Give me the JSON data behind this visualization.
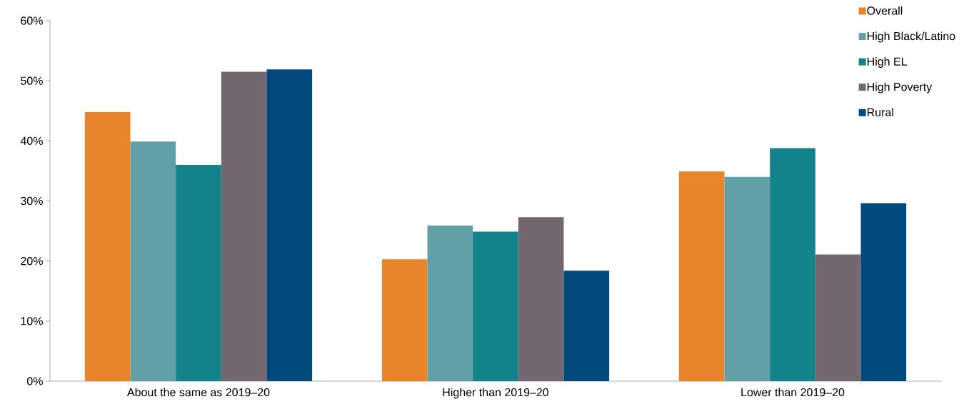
{
  "chart_data": {
    "type": "bar",
    "categories": [
      "About the same as 2019–20",
      "Higher than 2019–20",
      "Lower than 2019–20"
    ],
    "series": [
      {
        "name": "Overall",
        "color": "#e8852a",
        "values": [
          44.8,
          20.3,
          34.9
        ]
      },
      {
        "name": "High Black/Latino",
        "color": "#62a0a8",
        "values": [
          39.9,
          25.9,
          34.0
        ]
      },
      {
        "name": "High EL",
        "color": "#12838a",
        "values": [
          36.0,
          24.9,
          38.8
        ]
      },
      {
        "name": "High Poverty",
        "color": "#746870",
        "values": [
          51.5,
          27.3,
          21.1
        ]
      },
      {
        "name": "Rural",
        "color": "#02497e",
        "values": [
          51.9,
          18.4,
          29.6
        ]
      }
    ],
    "ylim": [
      0,
      60
    ],
    "yticks": [
      {
        "value": 0,
        "label": "0%"
      },
      {
        "value": 10,
        "label": "10%"
      },
      {
        "value": 20,
        "label": "20%"
      },
      {
        "value": 30,
        "label": "30%"
      },
      {
        "value": 40,
        "label": "40%"
      },
      {
        "value": 50,
        "label": "50%"
      },
      {
        "value": 60,
        "label": "60%"
      }
    ],
    "legend": "top right"
  }
}
